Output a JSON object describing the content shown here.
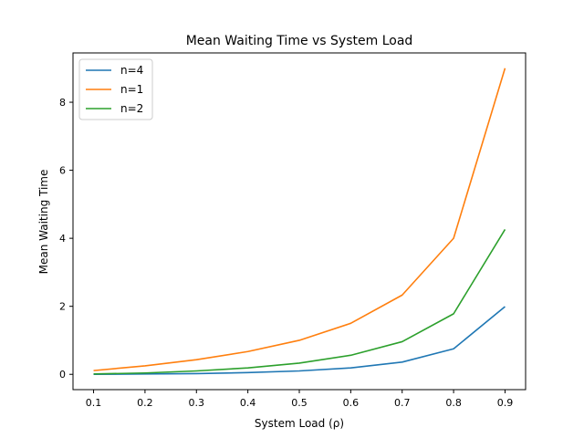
{
  "chart_data": {
    "type": "line",
    "title": "Mean Waiting Time vs System Load",
    "xlabel": "System Load (ρ)",
    "ylabel": "Mean Waiting Time",
    "x": [
      0.1,
      0.2,
      0.3,
      0.4,
      0.5,
      0.6,
      0.7,
      0.8,
      0.9
    ],
    "xlim": [
      0.06,
      0.94
    ],
    "ylim": [
      -0.45,
      9.45
    ],
    "xticks": [
      0.1,
      0.2,
      0.3,
      0.4,
      0.5,
      0.6,
      0.7,
      0.8,
      0.9
    ],
    "xtick_labels": [
      "0.1",
      "0.2",
      "0.3",
      "0.4",
      "0.5",
      "0.6",
      "0.7",
      "0.8",
      "0.9"
    ],
    "yticks": [
      0,
      2,
      4,
      6,
      8
    ],
    "ytick_labels": [
      "0",
      "2",
      "4",
      "6",
      "8"
    ],
    "grid": false,
    "legend_position": "top-left",
    "series": [
      {
        "name": "n=4",
        "color": "#1f77b4",
        "values": [
          0.0,
          0.01,
          0.02,
          0.05,
          0.1,
          0.19,
          0.36,
          0.75,
          1.99
        ]
      },
      {
        "name": "n=1",
        "color": "#ff7f0e",
        "values": [
          0.11,
          0.25,
          0.43,
          0.67,
          1.0,
          1.5,
          2.33,
          4.0,
          9.0
        ]
      },
      {
        "name": "n=2",
        "color": "#2ca02c",
        "values": [
          0.01,
          0.04,
          0.1,
          0.19,
          0.33,
          0.56,
          0.96,
          1.78,
          4.26
        ]
      }
    ]
  }
}
